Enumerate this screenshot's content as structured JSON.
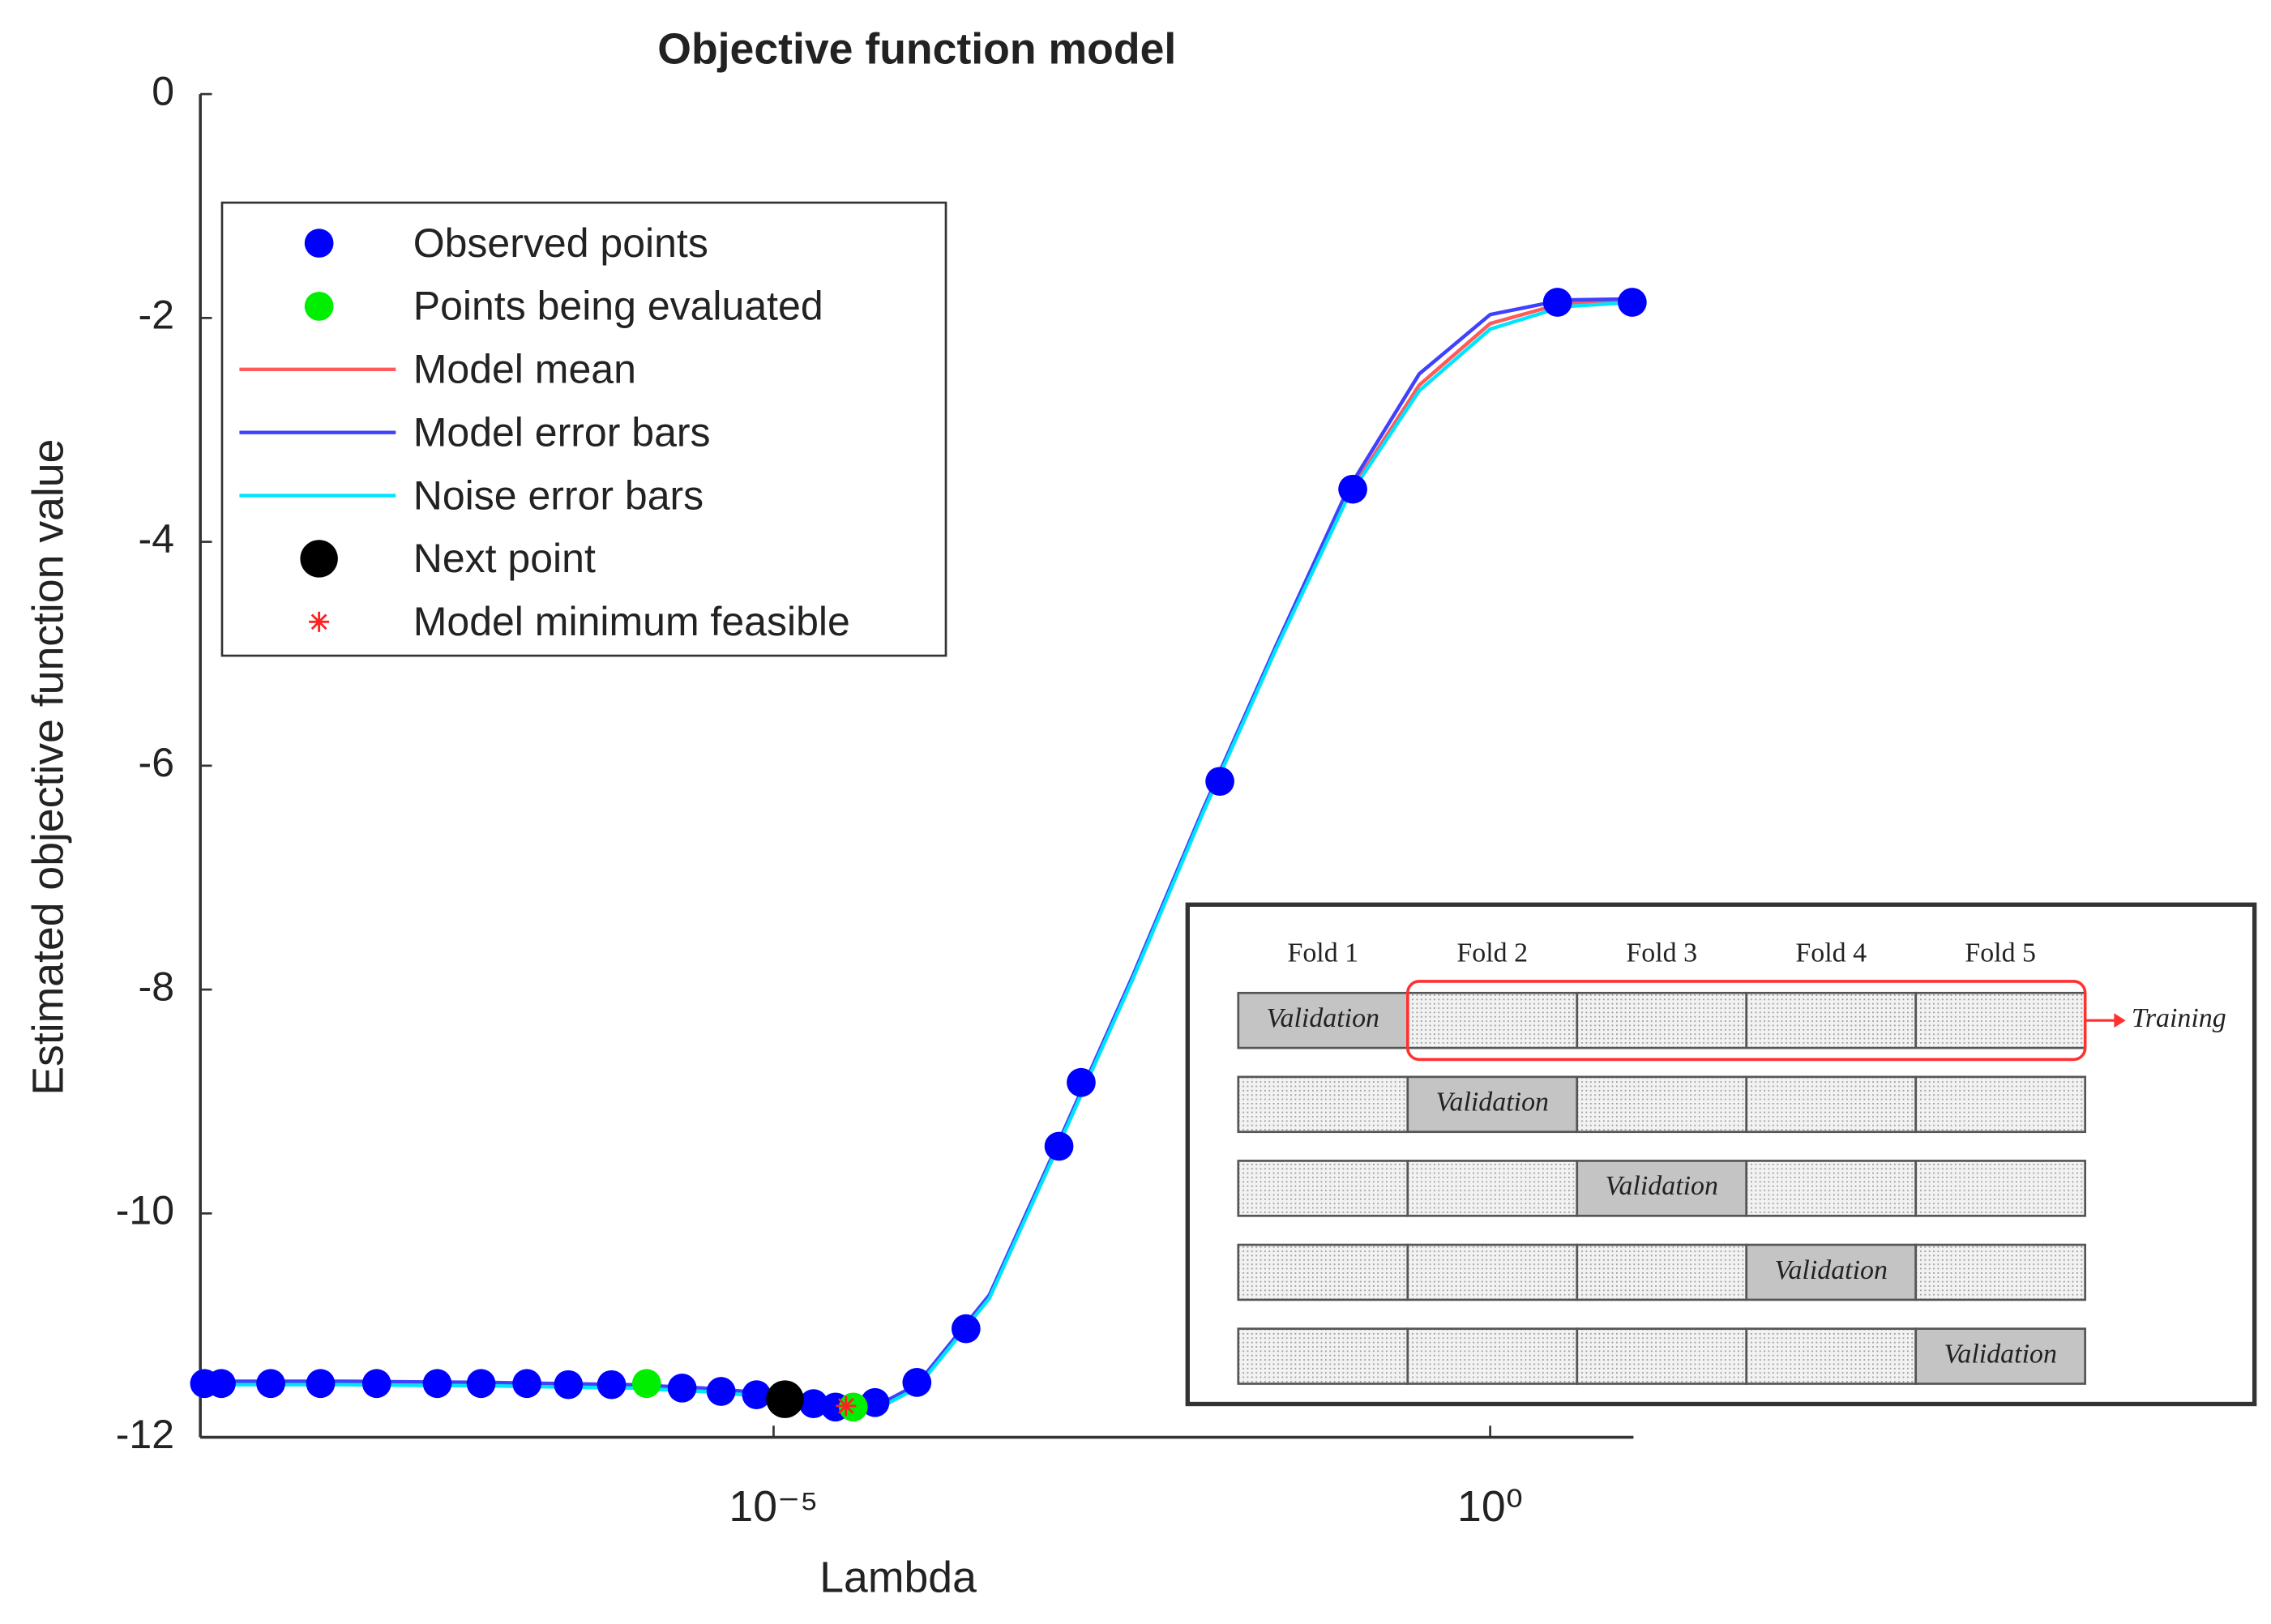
{
  "chart_data": {
    "type": "scatter",
    "title": "Objective function model",
    "x_label": "Lambda",
    "y_label": "Estimated objective function value",
    "xscale": "log",
    "xlim": [
      1e-09,
      10
    ],
    "xticks": [
      {
        "value": 1e-05,
        "label": "10⁻⁵"
      },
      {
        "value": 1,
        "label": "10⁰"
      }
    ],
    "ylim": [
      -12,
      0
    ],
    "yticks": [
      0,
      -2,
      -4,
      -6,
      -8,
      -10,
      -12
    ],
    "legend": "upper left",
    "series": [
      {
        "name": "Observed points",
        "color": "#0000ff",
        "style": "marker",
        "x": [
          1.07e-09,
          1.4e-09,
          3.1e-09,
          6.9e-09,
          1.7e-08,
          4.5e-08,
          9.1e-08,
          1.9e-07,
          3.7e-07,
          7.4e-07,
          2.3e-06,
          4.3e-06,
          7.6e-06,
          1.9e-05,
          2.7e-05,
          5.1e-05,
          0.0001,
          0.00022,
          0.00098,
          0.0014,
          0.013,
          0.11,
          2.95,
          9.8
        ],
        "values": [
          -11.52,
          -11.52,
          -11.52,
          -11.52,
          -11.52,
          -11.52,
          -11.52,
          -11.52,
          -11.53,
          -11.53,
          -11.56,
          -11.59,
          -11.62,
          -11.7,
          -11.73,
          -11.69,
          -11.51,
          -11.03,
          -9.4,
          -8.83,
          -6.14,
          -3.53,
          -1.86,
          -1.86
        ]
      },
      {
        "name": "Points being evaluated",
        "color": "#00ee00",
        "style": "marker",
        "x": [
          1.3e-06,
          3.6e-05
        ],
        "values": [
          -11.52,
          -11.73
        ]
      },
      {
        "name": "Model mean",
        "color": "#ff5a5a",
        "style": "line",
        "x": [
          1e-09,
          1e-08,
          1e-07,
          1e-06,
          3.2e-06,
          1e-05,
          3.2e-05,
          5.6e-05,
          0.0001,
          0.00032,
          0.001,
          0.0032,
          0.01,
          0.032,
          0.1,
          0.32,
          1,
          3.2,
          10
        ],
        "values": [
          -11.52,
          -11.52,
          -11.53,
          -11.55,
          -11.58,
          -11.63,
          -11.72,
          -11.72,
          -11.55,
          -10.75,
          -9.35,
          -7.9,
          -6.4,
          -4.95,
          -3.6,
          -2.6,
          -2.05,
          -1.87,
          -1.85
        ]
      },
      {
        "name": "Model error bars",
        "color": "#4040ff",
        "style": "line",
        "x": [
          1e-09,
          1e-08,
          1e-07,
          1e-06,
          3.2e-06,
          1e-05,
          3.2e-05,
          5.6e-05,
          0.0001,
          0.00032,
          0.001,
          0.0032,
          0.01,
          0.032,
          0.1,
          0.32,
          1,
          3.2,
          10
        ],
        "values": [
          -11.5,
          -11.5,
          -11.51,
          -11.53,
          -11.56,
          -11.61,
          -11.7,
          -11.7,
          -11.53,
          -10.73,
          -9.33,
          -7.88,
          -6.38,
          -4.93,
          -3.55,
          -2.5,
          -1.97,
          -1.84,
          -1.83
        ]
      },
      {
        "name": "Noise error bars",
        "color": "#00e5ff",
        "style": "line",
        "x": [
          1e-09,
          1e-08,
          1e-07,
          1e-06,
          3.2e-06,
          1e-05,
          3.2e-05,
          5.6e-05,
          0.0001,
          0.00032,
          0.001,
          0.0032,
          0.01,
          0.032,
          0.1,
          0.32,
          1,
          3.2,
          10
        ],
        "values": [
          -11.53,
          -11.53,
          -11.54,
          -11.56,
          -11.59,
          -11.64,
          -11.73,
          -11.73,
          -11.56,
          -10.76,
          -9.36,
          -7.91,
          -6.41,
          -4.96,
          -3.62,
          -2.65,
          -2.1,
          -1.9,
          -1.86
        ]
      },
      {
        "name": "Next point",
        "color": "#000000",
        "style": "big-marker",
        "x": [
          1.2e-05
        ],
        "values": [
          -11.66
        ]
      },
      {
        "name": "Model minimum feasible",
        "color": "#ff2020",
        "style": "star",
        "x": [
          3.2e-05
        ],
        "values": [
          -11.72
        ]
      }
    ]
  },
  "inset": {
    "folds": [
      "Fold 1",
      "Fold 2",
      "Fold 3",
      "Fold 4",
      "Fold 5"
    ],
    "validation_label": "Validation",
    "training_label": "Training"
  }
}
